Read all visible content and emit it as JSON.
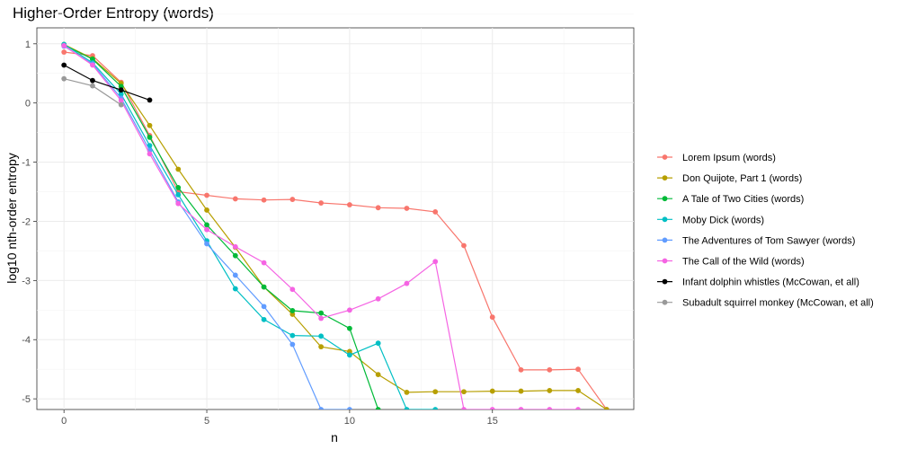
{
  "chart_data": {
    "type": "line",
    "title": "Higher-Order Entropy (words)",
    "xlabel": "n",
    "ylabel": "log10 nth-order entropy",
    "xlim": [
      -0.95,
      19.95
    ],
    "ylim": [
      -5.18,
      1.27
    ],
    "xticks": [
      0,
      5,
      10,
      15
    ],
    "yticks": [
      1,
      0,
      -1,
      -2,
      -3,
      -4,
      -5
    ],
    "grid": true,
    "legend_position": "right",
    "series": [
      {
        "name": "Lorem Ipsum (words)",
        "color": "#F8766D",
        "points": [
          [
            0,
            0.86
          ],
          [
            1,
            0.8
          ],
          [
            2,
            0.35
          ],
          [
            3,
            -0.55
          ],
          [
            4,
            -1.5
          ],
          [
            5,
            -1.56
          ],
          [
            6,
            -1.62
          ],
          [
            7,
            -1.64
          ],
          [
            8,
            -1.63
          ],
          [
            9,
            -1.69
          ],
          [
            10,
            -1.72
          ],
          [
            11,
            -1.77
          ],
          [
            12,
            -1.78
          ],
          [
            13,
            -1.84
          ],
          [
            14,
            -2.41
          ],
          [
            15,
            -3.62
          ],
          [
            16,
            -4.51
          ],
          [
            17,
            -4.51
          ],
          [
            18,
            -4.5
          ],
          [
            19,
            -5.18
          ]
        ]
      },
      {
        "name": "Don Quijote, Part 1 (words)",
        "color": "#B79F00",
        "points": [
          [
            0,
            0.99
          ],
          [
            1,
            0.75
          ],
          [
            2,
            0.33
          ],
          [
            3,
            -0.38
          ],
          [
            4,
            -1.12
          ],
          [
            5,
            -1.81
          ],
          [
            6,
            -2.44
          ],
          [
            7,
            -3.11
          ],
          [
            8,
            -3.57
          ],
          [
            9,
            -4.12
          ],
          [
            10,
            -4.2
          ],
          [
            11,
            -4.59
          ],
          [
            12,
            -4.89
          ],
          [
            13,
            -4.88
          ],
          [
            14,
            -4.88
          ],
          [
            15,
            -4.87
          ],
          [
            16,
            -4.87
          ],
          [
            17,
            -4.86
          ],
          [
            18,
            -4.86
          ],
          [
            19,
            -5.18
          ]
        ]
      },
      {
        "name": "A Tale of Two Cities (words)",
        "color": "#00BA38",
        "points": [
          [
            0,
            0.98
          ],
          [
            1,
            0.74
          ],
          [
            2,
            0.28
          ],
          [
            3,
            -0.58
          ],
          [
            4,
            -1.43
          ],
          [
            5,
            -2.06
          ],
          [
            6,
            -2.58
          ],
          [
            7,
            -3.11
          ],
          [
            8,
            -3.51
          ],
          [
            9,
            -3.55
          ],
          [
            10,
            -3.81
          ],
          [
            11,
            -5.18
          ]
        ]
      },
      {
        "name": "Moby Dick (words)",
        "color": "#00BFC4",
        "points": [
          [
            0,
            0.99
          ],
          [
            1,
            0.68
          ],
          [
            2,
            0.15
          ],
          [
            3,
            -0.72
          ],
          [
            4,
            -1.55
          ],
          [
            5,
            -2.33
          ],
          [
            6,
            -3.14
          ],
          [
            7,
            -3.66
          ],
          [
            8,
            -3.93
          ],
          [
            9,
            -3.94
          ],
          [
            10,
            -4.26
          ],
          [
            11,
            -4.06
          ],
          [
            12,
            -5.18
          ],
          [
            13,
            -5.18
          ]
        ]
      },
      {
        "name": "The Adventures of Tom Sawyer (words)",
        "color": "#619CFF",
        "points": [
          [
            0,
            0.96
          ],
          [
            1,
            0.66
          ],
          [
            2,
            0.08
          ],
          [
            3,
            -0.8
          ],
          [
            4,
            -1.67
          ],
          [
            5,
            -2.38
          ],
          [
            6,
            -2.91
          ],
          [
            7,
            -3.44
          ],
          [
            8,
            -4.08
          ],
          [
            9,
            -5.18
          ],
          [
            10,
            -5.18
          ]
        ]
      },
      {
        "name": "The Call of the Wild (words)",
        "color": "#F564E3",
        "points": [
          [
            0,
            0.97
          ],
          [
            1,
            0.64
          ],
          [
            2,
            0.04
          ],
          [
            3,
            -0.86
          ],
          [
            4,
            -1.7
          ],
          [
            5,
            -2.14
          ],
          [
            6,
            -2.43
          ],
          [
            7,
            -2.7
          ],
          [
            8,
            -3.15
          ],
          [
            9,
            -3.64
          ],
          [
            10,
            -3.5
          ],
          [
            11,
            -3.31
          ],
          [
            12,
            -3.05
          ],
          [
            13,
            -2.68
          ],
          [
            14,
            -5.18
          ],
          [
            15,
            -5.18
          ],
          [
            16,
            -5.18
          ],
          [
            17,
            -5.18
          ],
          [
            18,
            -5.18
          ]
        ]
      },
      {
        "name": "Infant dolphin whistles (McCowan, et all)",
        "color": "#000000",
        "points": [
          [
            0,
            0.64
          ],
          [
            1,
            0.38
          ],
          [
            2,
            0.22
          ],
          [
            3,
            0.05
          ]
        ]
      },
      {
        "name": "Subadult squirrel monkey (McCowan, et all)",
        "color": "#999999",
        "points": [
          [
            0,
            0.41
          ],
          [
            1,
            0.29
          ],
          [
            2,
            -0.03
          ]
        ]
      }
    ]
  }
}
